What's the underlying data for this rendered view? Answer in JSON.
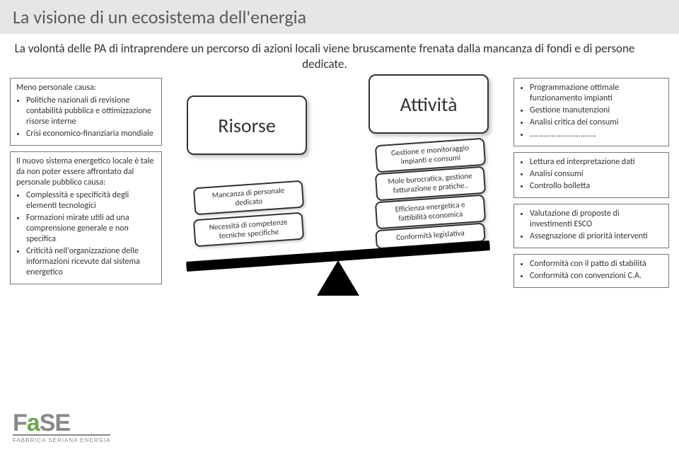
{
  "title": "La visione di un ecosistema dell'energia",
  "subtitle": "La volontà delle PA di intraprendere un percorso di azioni locali viene bruscamente frenata dalla mancanza di fondi e di persone dedicate.",
  "left": {
    "box1": {
      "lead": "Meno personale causa:",
      "items": [
        "Politiche nazionali di revisione contabilità pubblica e ottimizzazione risorse interne",
        "Crisi economico-finanziaria mondiale"
      ]
    },
    "box2": {
      "lead": "Il nuovo sistema energetico locale è tale da non poter essere affrontato dal personale pubblico causa:",
      "items": [
        "Complessità e specificità degli elementi tecnologici",
        "Formazioni mirate utili ad una comprensione generale e non specifica",
        "Criticità nell'organizzazione delle informazioni ricevute dal sistema energetico"
      ]
    }
  },
  "mid": {
    "left_label": "Risorse",
    "right_label": "Attività",
    "left_small": [
      "Mancanza di personale dedicato",
      "Necessità di competenze tecniche specifiche"
    ],
    "right_small": [
      "Gestione e monitoraggio impianti e consumi",
      "Mole burocratica, gestione fatturazione e pratiche..",
      "Efficienza energetica e fattibilità economica",
      "Conformità legislativa"
    ]
  },
  "right": {
    "box1": {
      "items": [
        "Programmazione ottimale funzionamento impianti",
        "Gestione manutenzioni",
        "Analisi critica dei consumi",
        "……………………………."
      ]
    },
    "box2": {
      "items": [
        "Lettura ed interpretazione dati",
        "Analisi consumi",
        "Controllo bolletta"
      ]
    },
    "box3": {
      "items": [
        "Valutazione di proposte di investimenti ESCO",
        "Assegnazione di priorità interventi"
      ]
    },
    "box4": {
      "items": [
        "Conformità con il patto di stabilità",
        "Conformità con convenzioni C.A."
      ]
    }
  },
  "logo": {
    "text": "FaSE",
    "sub": "FABBRICA SERIANA ENERGIA"
  },
  "colors": {
    "title_bg": "#e7e6e6",
    "border": "#777777",
    "beam": "#000000",
    "logo_green": "#6aa84f"
  }
}
